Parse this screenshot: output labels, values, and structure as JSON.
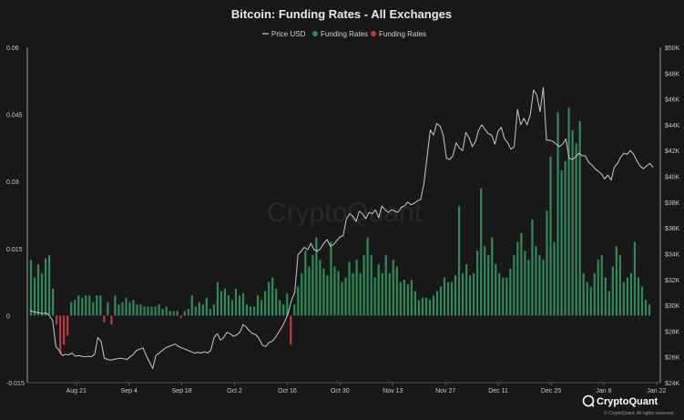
{
  "colors": {
    "background": "#181818",
    "positive": "#2f8a57",
    "negative": "#c4373c",
    "price_line": "#c9c9c9",
    "text": "#d0d0d0",
    "grid": "#2a2a2a"
  },
  "brand": {
    "watermark": "CryptoQuant",
    "logo_text": "CryptoQuant",
    "copyright": "© CryptoQuant. All rights reserved."
  },
  "chart_data": {
    "type": "bar",
    "title": "Bitcoin: Funding Rates - All Exchanges",
    "legend": {
      "placement": "top-center",
      "entries": [
        {
          "name": "Price USD",
          "icon": "line",
          "color": "#c9c9c9"
        },
        {
          "name": "Funding Rates",
          "icon": "circle",
          "color": "#2f8a57"
        },
        {
          "name": "Funding Rates",
          "icon": "circle",
          "color": "#c4373c"
        }
      ]
    },
    "x_axis": {
      "start": "2023-08-08",
      "end": "2024-01-23",
      "tick_labels": [
        "Aug 21",
        "Sep 4",
        "Sep 18",
        "Oct 2",
        "Oct 16",
        "Oct 30",
        "Nov 13",
        "Nov 27",
        "Dec 11",
        "Dec 25",
        "Jan 8",
        "Jan 22"
      ],
      "tick_dates": [
        "2023-08-21",
        "2023-09-04",
        "2023-09-18",
        "2023-10-02",
        "2023-10-16",
        "2023-10-30",
        "2023-11-13",
        "2023-11-27",
        "2023-12-11",
        "2023-12-25",
        "2024-01-08",
        "2024-01-22"
      ]
    },
    "y_left": {
      "ylim": [
        -0.015,
        0.06
      ],
      "tick_labels": [
        "0.06",
        "0.045",
        "0.03",
        "0.015",
        "0",
        "-0.015"
      ],
      "tick_values": [
        0.06,
        0.045,
        0.03,
        0.015,
        0,
        -0.015
      ]
    },
    "y_right": {
      "ylim": [
        24000,
        50000
      ],
      "tick_labels": [
        "$50K",
        "$48K",
        "$46K",
        "$44K",
        "$42K",
        "$40K",
        "$38K",
        "$36K",
        "$34K",
        "$32K",
        "$30K",
        "$28K",
        "$26K",
        "$24K"
      ],
      "tick_values": [
        50000,
        48000,
        46000,
        44000,
        42000,
        40000,
        38000,
        36000,
        34000,
        32000,
        30000,
        28000,
        26000,
        24000
      ]
    },
    "grid": false,
    "funding_rates": [
      0.0125,
      0.0085,
      0.0115,
      0.0095,
      0.0128,
      0.0135,
      0.006,
      -0.002,
      -0.0085,
      -0.0065,
      -0.0045,
      0.003,
      0.0035,
      0.0045,
      0.004,
      0.0045,
      0.0045,
      0.003,
      0.0045,
      0.0045,
      -0.0015,
      0.003,
      -0.002,
      0.0045,
      0.0025,
      0.003,
      0.004,
      0.003,
      0.0035,
      0.0025,
      0.0025,
      0.002,
      0.002,
      0.002,
      0.002,
      0.0025,
      0.0015,
      0.002,
      0.001,
      0.001,
      0.001,
      -0.0005,
      0.001,
      0.0015,
      0.0045,
      0.002,
      0.003,
      0.0025,
      0.004,
      0.0015,
      0.0025,
      0.0075,
      0.0055,
      0.006,
      0.0045,
      0.0035,
      0.006,
      0.0045,
      0.005,
      0.0025,
      0.002,
      0.002,
      0.0045,
      0.0035,
      0.0055,
      0.0075,
      0.0085,
      0.006,
      0.0035,
      0.0025,
      0.005,
      -0.0065,
      0.0025,
      0.0065,
      0.0095,
      0.0145,
      0.011,
      0.0135,
      0.0175,
      0.0125,
      0.0105,
      0.009,
      0.0165,
      0.011,
      0.01,
      0.0075,
      0.0085,
      0.012,
      0.0095,
      0.0125,
      0.0095,
      0.0135,
      0.0175,
      0.0135,
      0.0085,
      0.0115,
      0.0095,
      0.0135,
      0.0095,
      0.0125,
      0.011,
      0.0075,
      0.008,
      0.007,
      0.008,
      0.0055,
      0.0035,
      0.004,
      0.004,
      0.0035,
      0.0045,
      0.0055,
      0.0065,
      0.0085,
      0.0075,
      0.0075,
      0.009,
      0.0245,
      0.0095,
      0.0115,
      0.009,
      0.0095,
      0.0145,
      0.0285,
      0.0155,
      0.0135,
      0.0175,
      0.0115,
      0.0095,
      0.0085,
      0.0085,
      0.0105,
      0.0135,
      0.0165,
      0.0185,
      0.0145,
      0.0125,
      0.0215,
      0.0155,
      0.0135,
      0.0125,
      0.0235,
      0.0355,
      0.0165,
      0.0455,
      0.0325,
      0.0345,
      0.0465,
      0.0415,
      0.0385,
      0.0435,
      0.0095,
      0.0075,
      0.0065,
      0.0095,
      0.0125,
      0.0135,
      0.0085,
      0.0055,
      0.011,
      0.0155,
      0.0135,
      0.0075,
      0.0085,
      0.0095,
      0.0165,
      0.0085,
      0.0065,
      0.0035,
      0.0025
    ],
    "price_usd": [
      29600,
      29500,
      29450,
      29400,
      29350,
      29400,
      29200,
      28800,
      26800,
      26500,
      26100,
      26200,
      26150,
      26300,
      26050,
      26100,
      26050,
      26000,
      26050,
      26000,
      26200,
      27500,
      27200,
      25900,
      25800,
      25750,
      25800,
      25850,
      25900,
      25850,
      25800,
      26000,
      26200,
      26500,
      26600,
      26700,
      26100,
      25600,
      25100,
      26100,
      26300,
      26500,
      26700,
      26800,
      26900,
      27000,
      26800,
      26700,
      26600,
      26500,
      26400,
      26300,
      26350,
      26300,
      26400,
      26300,
      26500,
      27500,
      27800,
      27300,
      27500,
      27900,
      27800,
      27600,
      27700,
      27900,
      28500,
      28300,
      28000,
      27800,
      27700,
      27400,
      26900,
      26800,
      27100,
      27200,
      27500,
      27900,
      28300,
      28800,
      29400,
      30400,
      31000,
      33900,
      34200,
      34500,
      34300,
      34800,
      34300,
      34200,
      34400,
      34800,
      35100,
      34600,
      34700,
      35000,
      35300,
      35400,
      36700,
      37100,
      36900,
      36500,
      37300,
      37100,
      36700,
      37200,
      37100,
      37400,
      36800,
      37700,
      37400,
      37200,
      37400,
      37300,
      37200,
      37600,
      37700,
      38000,
      37800,
      37900,
      38100,
      38200,
      39400,
      41500,
      43600,
      43200,
      44100,
      43900,
      43200,
      41400,
      41300,
      41600,
      42600,
      42200,
      42000,
      43400,
      43000,
      42300,
      42700,
      43600,
      44000,
      43600,
      43300,
      43200,
      42500,
      43500,
      43800,
      42900,
      42600,
      42100,
      42300,
      45200,
      44000,
      44500,
      44000,
      44800,
      46700,
      46300,
      45000,
      46900,
      42800,
      42800,
      42700,
      42500,
      42300,
      42500,
      42900,
      41400,
      41300,
      41500,
      41800,
      41600,
      41600,
      41100,
      40900,
      40600,
      40400,
      40200,
      39800,
      40100,
      39700,
      40700,
      41000,
      41500,
      41800,
      41700,
      42000,
      41700,
      41200,
      40800,
      40600,
      40800,
      41000,
      40700
    ]
  }
}
